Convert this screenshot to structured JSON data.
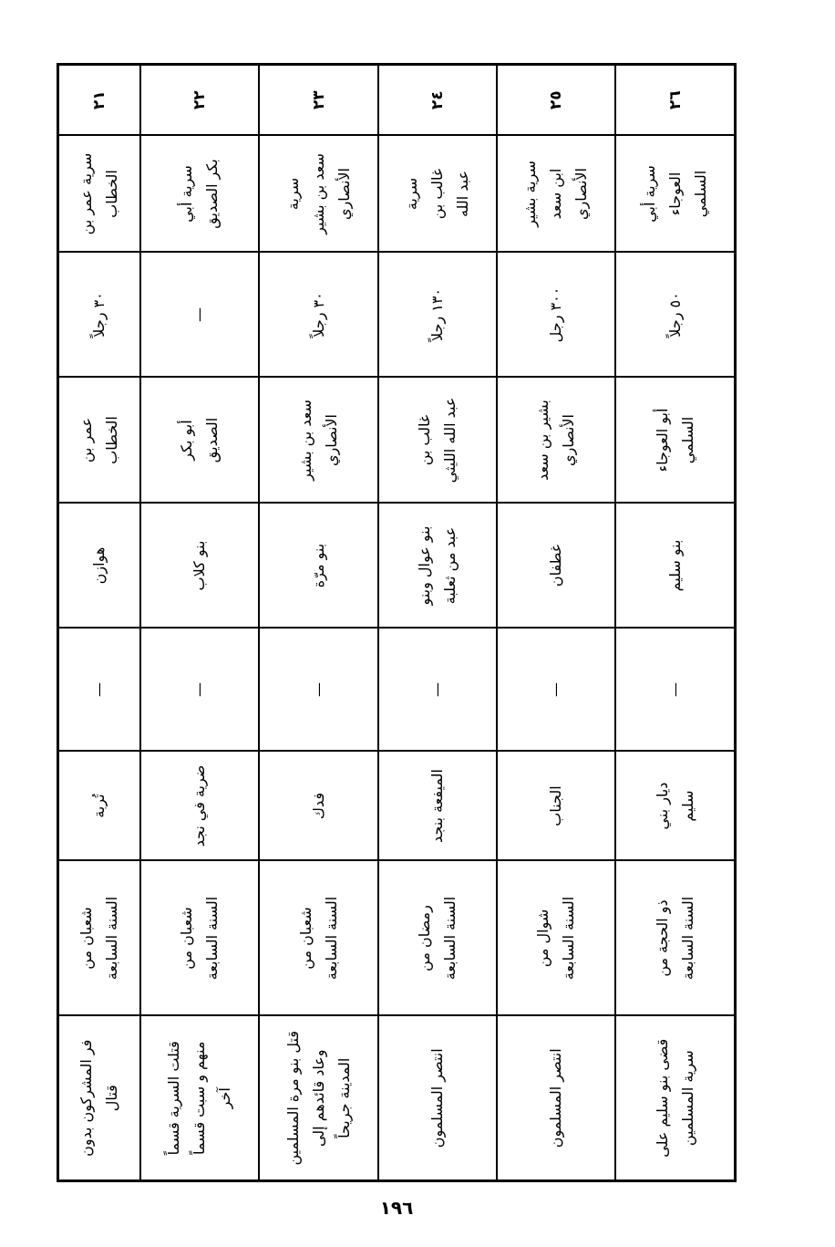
{
  "rows": [
    {
      "num": "٢١",
      "name": "سرية عمر بن\nالخطاب",
      "count": "٣٠ رجلاً",
      "leader": "عمر بن\nالخطاب",
      "target": "هوازن",
      "dash": "—",
      "place": "تُربة",
      "date": "شعبان من\nالسنة السابعة",
      "result": "فر المشركون بدون\nقتال"
    },
    {
      "num": "٢٢",
      "name": "سرية أبي\nبكر الصديق",
      "count": "—",
      "leader": "أبو بكر\nالصديق",
      "target": "بنو كلاب",
      "dash": "—",
      "place": "ضرية في نجد",
      "date": "شعبان من\nالسنة السابعة",
      "result": "قتلت السرية قسماً\nمنهم و سبت قسماً\nآخر"
    },
    {
      "num": "٢٣",
      "name": "سرية\nسعد بن بشير\nالأنصاري",
      "count": "٣٠ رجلاً",
      "leader": "سعد بن بشير\nالأنصاري",
      "target": "بنو مرّة",
      "dash": "—",
      "place": "فدك",
      "date": "شعبان من\nالسنة السابعة",
      "result": "قتل بنو مرة المسلمين\nوعاد قائدهم إلى\nالمدينة جريحاً"
    },
    {
      "num": "٢٤",
      "name": "سرية\nغالب بن\nعبد الله",
      "count": "١٣٠ رجلاً",
      "leader": "غالب بن\nعبد الله الليثي",
      "target": "بنو عوال وبنو\nعبد من ثعلبة",
      "dash": "—",
      "place": "الميفعة بنجد",
      "date": "رمضان من\nالسنة السابعة",
      "result": "انتصر المسلمون"
    },
    {
      "num": "٢٥",
      "name": "سرية بشير\nابن سعد\nالأنصاري",
      "count": "٣٠٠ رجل",
      "leader": "بشير بن سعد\nالأنصاري",
      "target": "غطفان",
      "dash": "—",
      "place": "الجناب",
      "date": "شوال من\nالسنة السابعة",
      "result": "انتصر المسلمون"
    },
    {
      "num": "٢٦",
      "name": "سرية أبي\nالعوجاء\nالسلمي",
      "count": "٥٠ رجلاً",
      "leader": "أبو العوجاء\nالسلمي",
      "target": "بنو سليم",
      "dash": "—",
      "place": "ديار بني\nسليم",
      "date": "ذو الحجة من\nالسنة السابعة",
      "result": "قضى بنو سليم على\nسرية المسلمين"
    }
  ],
  "page_number": "١٩٦"
}
